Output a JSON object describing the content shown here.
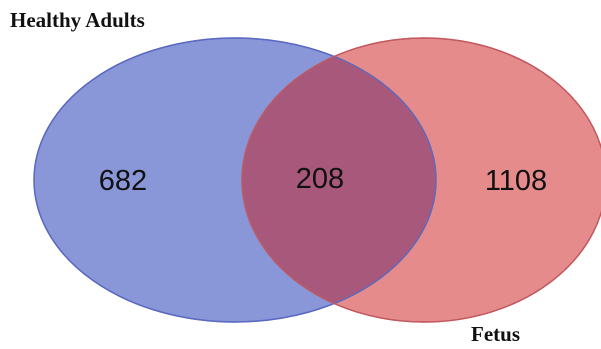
{
  "venn": {
    "sets": [
      {
        "label": "Healthy Adults",
        "color": "#6f7fd0"
      },
      {
        "label": "Fetus",
        "color": "#e06a6a"
      }
    ],
    "counts": {
      "only_a": "682",
      "intersection": "208",
      "only_b": "1108"
    },
    "intersection_color": "#a8587a"
  }
}
